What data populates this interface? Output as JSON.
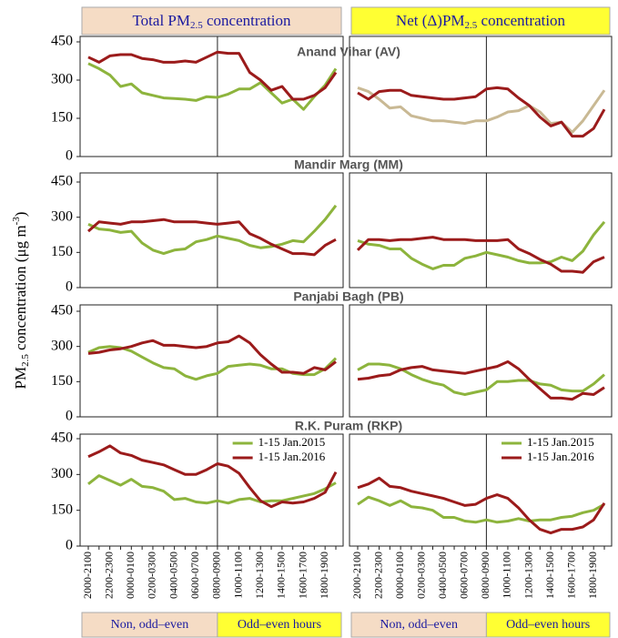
{
  "headers": [
    {
      "pre": "Total PM",
      "sub": "2.5",
      "post": " concentration"
    },
    {
      "pre": "Net (Δ)PM",
      "sub": "2.5",
      "post": " concentration"
    }
  ],
  "footers": [
    [
      "Non, odd–even",
      "Odd–even hours"
    ],
    [
      "Non, odd–even",
      "Odd–even hours"
    ]
  ],
  "ylabel": {
    "pre": "PM",
    "sub": "2.5",
    "mid": " concentration (μg m",
    "sup": "-3",
    "post": ")"
  },
  "chart_data": [
    {
      "type": "line",
      "title": "Anand Vihar (AV)",
      "ylim": [
        0,
        450
      ],
      "yticks": [
        0,
        150,
        300,
        450
      ],
      "series": [
        {
          "color": "#8db43d",
          "values": [
            365,
            345,
            320,
            275,
            285,
            250,
            240,
            230,
            228,
            225,
            220,
            235,
            232,
            245,
            265,
            265,
            290,
            250,
            210,
            225,
            185,
            235,
            280,
            345
          ]
        },
        {
          "color": "#9b1b1b",
          "values": [
            390,
            370,
            395,
            400,
            400,
            385,
            380,
            370,
            370,
            375,
            370,
            390,
            410,
            405,
            405,
            330,
            300,
            260,
            275,
            225,
            225,
            240,
            270,
            330
          ]
        }
      ]
    },
    {
      "type": "line",
      "ylim": [
        0,
        450
      ],
      "series": [
        {
          "color": "#c9b994",
          "values": [
            270,
            255,
            225,
            190,
            195,
            160,
            150,
            140,
            140,
            135,
            130,
            140,
            140,
            155,
            175,
            180,
            200,
            175,
            130,
            135,
            95,
            140,
            200,
            260
          ]
        },
        {
          "color": "#9b1b1b",
          "values": [
            250,
            225,
            255,
            260,
            260,
            240,
            235,
            230,
            225,
            225,
            230,
            235,
            265,
            270,
            265,
            230,
            200,
            155,
            120,
            135,
            80,
            80,
            110,
            185
          ]
        }
      ]
    },
    {
      "type": "line",
      "title": "Mandir Marg (MM)",
      "ylim": [
        0,
        450
      ],
      "yticks": [
        0,
        150,
        300,
        450
      ],
      "series": [
        {
          "color": "#8db43d",
          "values": [
            270,
            250,
            245,
            235,
            240,
            190,
            160,
            145,
            160,
            165,
            195,
            205,
            220,
            210,
            200,
            180,
            170,
            175,
            185,
            200,
            195,
            240,
            290,
            350
          ]
        },
        {
          "color": "#9b1b1b",
          "values": [
            240,
            280,
            275,
            270,
            280,
            280,
            285,
            290,
            280,
            280,
            280,
            275,
            270,
            275,
            280,
            230,
            210,
            185,
            165,
            145,
            145,
            140,
            180,
            205
          ]
        }
      ]
    },
    {
      "type": "line",
      "ylim": [
        0,
        450
      ],
      "series": [
        {
          "color": "#8db43d",
          "values": [
            200,
            185,
            180,
            165,
            165,
            125,
            100,
            80,
            95,
            95,
            125,
            135,
            150,
            140,
            130,
            115,
            105,
            105,
            110,
            130,
            115,
            155,
            225,
            280
          ]
        },
        {
          "color": "#9b1b1b",
          "values": [
            160,
            205,
            205,
            200,
            205,
            205,
            210,
            215,
            205,
            205,
            205,
            200,
            200,
            200,
            205,
            165,
            145,
            120,
            100,
            70,
            70,
            65,
            110,
            130
          ]
        }
      ]
    },
    {
      "type": "line",
      "title": "Panjabi Bagh (PB)",
      "ylim": [
        0,
        450
      ],
      "yticks": [
        0,
        150,
        300,
        450
      ],
      "series": [
        {
          "color": "#8db43d",
          "values": [
            275,
            295,
            300,
            295,
            280,
            255,
            230,
            210,
            205,
            175,
            160,
            175,
            185,
            215,
            220,
            225,
            220,
            205,
            205,
            185,
            180,
            180,
            205,
            250
          ]
        },
        {
          "color": "#9b1b1b",
          "values": [
            270,
            275,
            285,
            290,
            300,
            315,
            325,
            305,
            305,
            300,
            295,
            300,
            315,
            320,
            345,
            315,
            265,
            225,
            190,
            190,
            185,
            210,
            200,
            235
          ]
        }
      ]
    },
    {
      "type": "line",
      "ylim": [
        0,
        450
      ],
      "series": [
        {
          "color": "#8db43d",
          "values": [
            200,
            225,
            225,
            220,
            205,
            180,
            160,
            145,
            135,
            105,
            95,
            105,
            115,
            150,
            150,
            155,
            155,
            140,
            135,
            115,
            110,
            110,
            140,
            180
          ]
        },
        {
          "color": "#9b1b1b",
          "values": [
            160,
            165,
            175,
            180,
            200,
            210,
            215,
            200,
            195,
            190,
            185,
            195,
            205,
            215,
            235,
            205,
            160,
            120,
            80,
            80,
            75,
            100,
            95,
            125
          ]
        }
      ]
    },
    {
      "type": "line",
      "title": "R.K. Puram (RKP)",
      "ylim": [
        0,
        450
      ],
      "yticks": [
        0,
        150,
        300,
        450
      ],
      "categories": [
        "2000-2100",
        null,
        "2200-2300",
        null,
        "0000-0100",
        null,
        "0200-0300",
        null,
        "0400-0500",
        null,
        "0600-0700",
        null,
        "0800-0900",
        null,
        "1000-1100",
        null,
        "1200-1300",
        null,
        "1400-1500",
        null,
        "1600-1700",
        null,
        "1800-1900",
        null
      ],
      "series": [
        {
          "name": "1-15 Jan.2015",
          "color": "#8db43d",
          "values": [
            260,
            295,
            275,
            255,
            280,
            250,
            245,
            230,
            195,
            200,
            185,
            180,
            190,
            180,
            195,
            200,
            185,
            190,
            190,
            200,
            210,
            220,
            240,
            265
          ]
        },
        {
          "name": "1-15 Jan.2016",
          "color": "#9b1b1b",
          "values": [
            375,
            395,
            420,
            390,
            380,
            360,
            350,
            340,
            320,
            300,
            300,
            320,
            345,
            335,
            305,
            245,
            190,
            165,
            185,
            180,
            185,
            200,
            225,
            310
          ]
        }
      ]
    },
    {
      "type": "line",
      "ylim": [
        0,
        450
      ],
      "categories": [
        "2000-2100",
        null,
        "2200-2300",
        null,
        "0000-0100",
        null,
        "0200-0300",
        null,
        "0400-0500",
        null,
        "0600-0700",
        null,
        "0800-0900",
        null,
        "1000-1100",
        null,
        "1200-1300",
        null,
        "1400-1500",
        null,
        "1600-1700",
        null,
        "1800-1900",
        null
      ],
      "series": [
        {
          "name": "1-15 Jan.2015",
          "color": "#8db43d",
          "values": [
            175,
            205,
            190,
            170,
            190,
            165,
            160,
            150,
            120,
            120,
            105,
            100,
            110,
            100,
            105,
            115,
            105,
            110,
            110,
            120,
            125,
            140,
            150,
            175
          ]
        },
        {
          "name": "1-15 Jan.2016",
          "color": "#9b1b1b",
          "values": [
            245,
            260,
            285,
            250,
            245,
            230,
            220,
            210,
            200,
            185,
            170,
            175,
            200,
            215,
            200,
            160,
            110,
            70,
            55,
            70,
            70,
            80,
            110,
            180
          ]
        }
      ]
    }
  ]
}
